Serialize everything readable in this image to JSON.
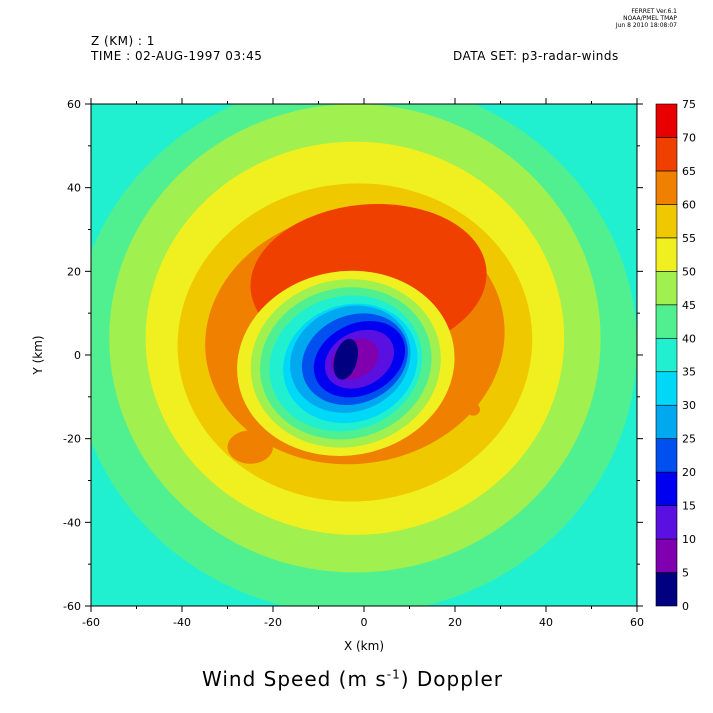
{
  "header": {
    "z_label": "Z (KM) : 1",
    "time_label": "TIME : 02-AUG-1997 03:45",
    "dataset_label": "DATA SET: p3-radar-winds",
    "ferret_line1": "FERRET  Ver.6.1",
    "ferret_line2": "NOAA/PMEL TMAP",
    "ferret_line3": "Jun  8 2010 18:08:07"
  },
  "title": {
    "prefix": "Wind Speed (m s",
    "superscript": "-1",
    "suffix": ") Doppler"
  },
  "chart_data": {
    "type": "heatmap",
    "title": "Wind Speed (m s-1) Doppler",
    "xlabel": "X (km)",
    "ylabel": "Y (km)",
    "xlim": [
      -60,
      60
    ],
    "ylim": [
      -60,
      60
    ],
    "x_ticks": [
      -60,
      -40,
      -20,
      0,
      20,
      40,
      60
    ],
    "y_ticks": [
      -60,
      -40,
      -20,
      0,
      20,
      40,
      60
    ],
    "x_tick_labels": [
      "-60",
      "-40",
      "-20",
      "0",
      "20",
      "40",
      "60"
    ],
    "y_tick_labels": [
      "-60",
      "-40",
      "-20",
      "0",
      "20",
      "40",
      "60"
    ],
    "colorbar": {
      "levels": [
        0,
        5,
        10,
        15,
        20,
        25,
        30,
        35,
        40,
        45,
        50,
        55,
        60,
        65,
        70,
        75
      ],
      "labels": [
        "0",
        "5",
        "10",
        "15",
        "20",
        "25",
        "30",
        "35",
        "40",
        "45",
        "50",
        "55",
        "60",
        "65",
        "70",
        "75"
      ],
      "colors": [
        "#000080",
        "#8000b0",
        "#5a10e0",
        "#0000f0",
        "#0050f0",
        "#00a8f0",
        "#00d8f8",
        "#20f0d0",
        "#50f090",
        "#a0f050",
        "#f0f020",
        "#f0c800",
        "#f08000",
        "#f04000",
        "#e80000",
        "#a00000"
      ]
    },
    "field": {
      "center": [
        -2,
        0
      ],
      "eye_minimum": 3,
      "peak": 65,
      "peak_location": [
        5,
        25
      ],
      "contour_levels_shown": [
        0,
        5,
        10,
        15,
        20,
        25,
        30,
        35,
        40,
        45,
        50,
        55,
        60,
        65
      ]
    }
  }
}
